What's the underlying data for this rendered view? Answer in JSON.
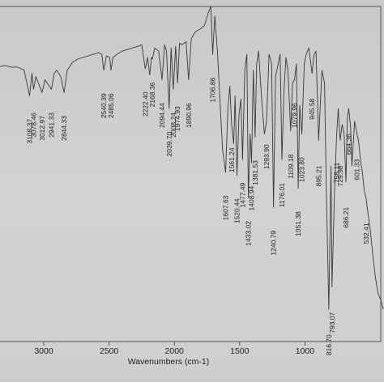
{
  "chart_data": {
    "type": "line",
    "xlabel": "Wavenumbers (cm-1)",
    "x_reversed": true,
    "xlim": [
      4000,
      400
    ],
    "ylim": [
      0,
      100
    ],
    "x_ticks": [
      3000,
      2500,
      2000,
      1500,
      1000
    ],
    "grid": false,
    "series": [
      {
        "x": [
          4000,
          3950,
          3900,
          3850,
          3800,
          3750,
          3700,
          3650,
          3600,
          3550,
          3500,
          3450,
          3400,
          3350,
          3300,
          3250,
          3200,
          3150,
          3108.37,
          3090,
          3078.46,
          3060,
          3012.97,
          2990,
          2941.33,
          2920,
          2900,
          2870,
          2844.33,
          2820,
          2780,
          2740,
          2700,
          2660,
          2620,
          2580,
          2555,
          2540.39,
          2520,
          2495,
          2485.06,
          2470,
          2440,
          2400,
          2360,
          2320,
          2280,
          2250,
          2222.4,
          2205,
          2188.36,
          2175,
          2168.36,
          2150,
          2120,
          2094.44,
          2075,
          2060,
          2039.7,
          2025,
          2008.24,
          1990,
          1974.93,
          1960,
          1940,
          1910,
          1890.96,
          1870,
          1840,
          1800,
          1770,
          1740,
          1720,
          1706.86,
          1690,
          1670,
          1650,
          1630,
          1607.63,
          1590,
          1575,
          1561.24,
          1545,
          1535,
          1520.44,
          1505,
          1490,
          1477.49,
          1460,
          1445,
          1433.02,
          1420,
          1408.94,
          1395,
          1381.53,
          1370,
          1355,
          1330,
          1310,
          1293.9,
          1275,
          1255,
          1240.79,
          1225,
          1205,
          1190,
          1176.01,
          1160,
          1145,
          1130,
          1109.18,
          1095,
          1079.96,
          1065,
          1051.38,
          1040,
          1023.8,
          1005,
          990,
          970,
          945.58,
          930,
          915,
          895.21,
          870,
          850,
          835,
          816.7,
          800,
          793.07,
          775,
          758.11,
          745,
          729.98,
          715,
          700,
          686.21,
          675,
          664.36,
          650,
          640,
          620,
          601.33,
          590,
          575,
          560,
          545,
          532.41,
          520,
          500,
          480,
          460,
          440,
          420,
          400
        ],
        "y": [
          83,
          83,
          82.5,
          82,
          82,
          82,
          81.5,
          81.5,
          81.5,
          81,
          81.5,
          81,
          81.5,
          81,
          81.5,
          81,
          81,
          80,
          72,
          79,
          74,
          78,
          73,
          77,
          74,
          79,
          80,
          78,
          73,
          80,
          82.5,
          83.5,
          84,
          84.5,
          85,
          85.5,
          85,
          80,
          84.5,
          84,
          80,
          84,
          85,
          86,
          86.5,
          87,
          87.5,
          88,
          80.5,
          84,
          78.5,
          84,
          83.5,
          87,
          86,
          77,
          88,
          86,
          68,
          87,
          74,
          87.5,
          76,
          88.5,
          88,
          89,
          77,
          90,
          92,
          93,
          94,
          98,
          100,
          85,
          97,
          86,
          70,
          55,
          48,
          68,
          75,
          63,
          57,
          72,
          47,
          66,
          71,
          52,
          80,
          85,
          40,
          60,
          51,
          80,
          59,
          82,
          86,
          70,
          60,
          64,
          85,
          82,
          37,
          78,
          82,
          85,
          52,
          74,
          84,
          80,
          61,
          76,
          77,
          82,
          43,
          69,
          60,
          82,
          85,
          87,
          79,
          85,
          86,
          58,
          80,
          76,
          40,
          5,
          50,
          12,
          40,
          59,
          68,
          58,
          63,
          60,
          45,
          65,
          68,
          62,
          50,
          64,
          60,
          58,
          52,
          48,
          42,
          40,
          36,
          30,
          22,
          15,
          10,
          8,
          5
        ]
      }
    ],
    "peak_labels": [
      {
        "label": "3108.37",
        "x": 3108.37
      },
      {
        "label": "3078.46",
        "x": 3078.46
      },
      {
        "label": "3012.97",
        "x": 3012.97
      },
      {
        "label": "2941.33",
        "x": 2941.33
      },
      {
        "label": "2844.33",
        "x": 2844.33
      },
      {
        "label": "2540.39",
        "x": 2540.39
      },
      {
        "label": "2485.06",
        "x": 2485.06
      },
      {
        "label": "2222.40",
        "x": 2222.4
      },
      {
        "label": "2168.36",
        "x": 2168.36
      },
      {
        "label": "2094.44",
        "x": 2094.44
      },
      {
        "label": "2039.70",
        "x": 2039.7
      },
      {
        "label": "2008.24",
        "x": 2008.24
      },
      {
        "label": "1974.93",
        "x": 1974.93
      },
      {
        "label": "1890.96",
        "x": 1890.96
      },
      {
        "label": "1706.86",
        "x": 1706.86
      },
      {
        "label": "1607.63",
        "x": 1607.63
      },
      {
        "label": "1561.24",
        "x": 1561.24
      },
      {
        "label": "1520.44",
        "x": 1520.44
      },
      {
        "label": "1477.49",
        "x": 1477.49
      },
      {
        "label": "1433.02",
        "x": 1433.02
      },
      {
        "label": "1408.94",
        "x": 1408.94
      },
      {
        "label": "1381.53",
        "x": 1381.53
      },
      {
        "label": "1293.90",
        "x": 1293.9
      },
      {
        "label": "1240.79",
        "x": 1240.79
      },
      {
        "label": "1176.01",
        "x": 1176.01
      },
      {
        "label": "1109.18",
        "x": 1109.18
      },
      {
        "label": "1079.96",
        "x": 1079.96
      },
      {
        "label": "1051.38",
        "x": 1051.38
      },
      {
        "label": "1023.80",
        "x": 1023.8
      },
      {
        "label": "945.58",
        "x": 945.58
      },
      {
        "label": "895.21",
        "x": 895.21
      },
      {
        "label": "816.70",
        "x": 816.7
      },
      {
        "label": "793.07",
        "x": 793.07
      },
      {
        "label": "758.11",
        "x": 758.11
      },
      {
        "label": "729.98",
        "x": 729.98
      },
      {
        "label": "686.21",
        "x": 686.21
      },
      {
        "label": "664.36",
        "x": 664.36
      },
      {
        "label": "601.33",
        "x": 601.33
      },
      {
        "label": "532.41",
        "x": 532.41
      }
    ],
    "colors": {
      "line": "#3a3a3a",
      "frame": "#555555",
      "text": "#222222"
    }
  }
}
